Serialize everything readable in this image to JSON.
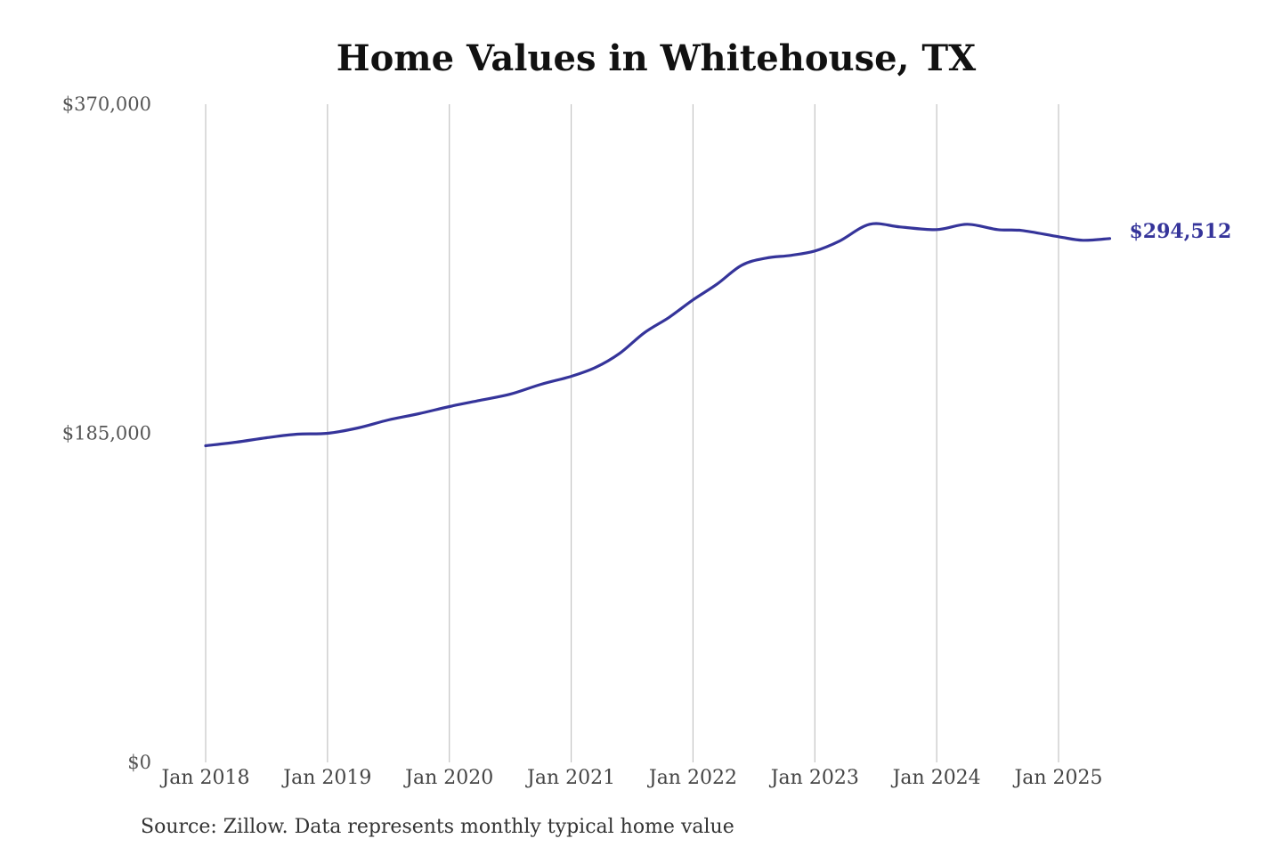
{
  "chart_data": {
    "type": "line",
    "title": "Home Values in Whitehouse, TX",
    "xlabel": "",
    "ylabel": "",
    "ylim": [
      0,
      370000
    ],
    "y_ticks": [
      {
        "value": 0,
        "label": "$0"
      },
      {
        "value": 185000,
        "label": "$185,000"
      },
      {
        "value": 370000,
        "label": "$370,000"
      }
    ],
    "x_ticks": [
      {
        "value": 2018.0,
        "label": "Jan 2018"
      },
      {
        "value": 2019.0,
        "label": "Jan 2019"
      },
      {
        "value": 2020.0,
        "label": "Jan 2020"
      },
      {
        "value": 2021.0,
        "label": "Jan 2021"
      },
      {
        "value": 2022.0,
        "label": "Jan 2022"
      },
      {
        "value": 2023.0,
        "label": "Jan 2023"
      },
      {
        "value": 2024.0,
        "label": "Jan 2024"
      },
      {
        "value": 2025.0,
        "label": "Jan 2025"
      }
    ],
    "xlim": [
      2018.0,
      2025.42
    ],
    "grid": "vertical",
    "series": [
      {
        "color": "#35349a",
        "end_label": "$294,512",
        "points": [
          [
            2018.0,
            178000
          ],
          [
            2018.25,
            180000
          ],
          [
            2018.5,
            182500
          ],
          [
            2018.75,
            184500
          ],
          [
            2019.0,
            185000
          ],
          [
            2019.25,
            188000
          ],
          [
            2019.5,
            192500
          ],
          [
            2019.75,
            196000
          ],
          [
            2020.0,
            200000
          ],
          [
            2020.25,
            203500
          ],
          [
            2020.5,
            207000
          ],
          [
            2020.75,
            212500
          ],
          [
            2021.0,
            217000
          ],
          [
            2021.2,
            222000
          ],
          [
            2021.4,
            230000
          ],
          [
            2021.6,
            241500
          ],
          [
            2021.8,
            250000
          ],
          [
            2022.0,
            260000
          ],
          [
            2022.2,
            269000
          ],
          [
            2022.4,
            279500
          ],
          [
            2022.6,
            283500
          ],
          [
            2022.8,
            285000
          ],
          [
            2023.0,
            287500
          ],
          [
            2023.2,
            293000
          ],
          [
            2023.45,
            302500
          ],
          [
            2023.7,
            301000
          ],
          [
            2024.0,
            299500
          ],
          [
            2024.25,
            302500
          ],
          [
            2024.5,
            299500
          ],
          [
            2024.7,
            299000
          ],
          [
            2025.0,
            295500
          ],
          [
            2025.2,
            293500
          ],
          [
            2025.42,
            294512
          ]
        ]
      }
    ]
  },
  "footer": {
    "source": "Source: Zillow. Data represents monthly typical home value"
  }
}
